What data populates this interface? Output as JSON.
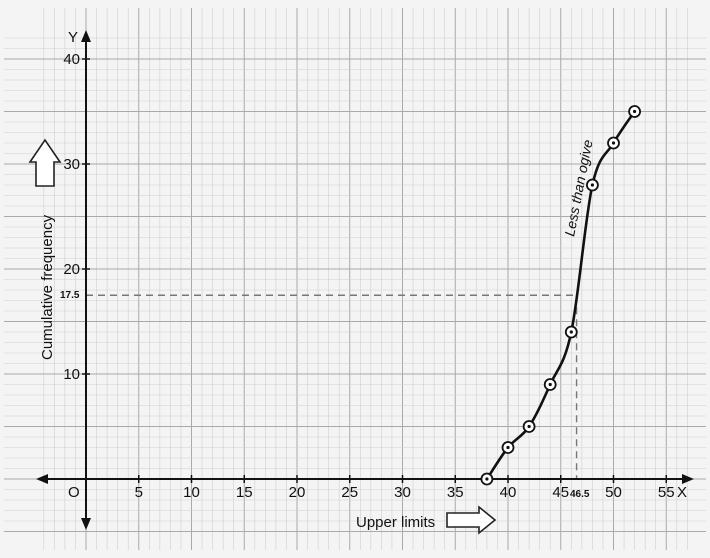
{
  "chart_data": {
    "type": "line",
    "x": [
      38,
      40,
      42,
      44,
      46,
      48,
      50,
      52
    ],
    "series": [
      {
        "name": "Less than ogive",
        "values": [
          0,
          3,
          5,
          9,
          14,
          28,
          32,
          35
        ]
      }
    ],
    "xlabel": "Upper limits",
    "ylabel": "Cumulative frequency",
    "x_axis_letter": "X",
    "y_axis_letter": "Y",
    "origin_label": "O",
    "xlim": [
      -4,
      57
    ],
    "ylim": [
      -5,
      42
    ],
    "x_ticks": [
      5,
      10,
      15,
      20,
      25,
      30,
      35,
      40,
      45,
      50,
      55
    ],
    "y_ticks": [
      10,
      20,
      30,
      40
    ],
    "median_marker": {
      "x": 46.5,
      "y": 17.5,
      "x_label": "46.5",
      "y_label": "17.5"
    },
    "grid": true,
    "colors": {
      "curve": "#111111",
      "grid_minor": "#cfcfcf",
      "grid_major": "#a9a9a9",
      "guide": "#777777"
    }
  }
}
